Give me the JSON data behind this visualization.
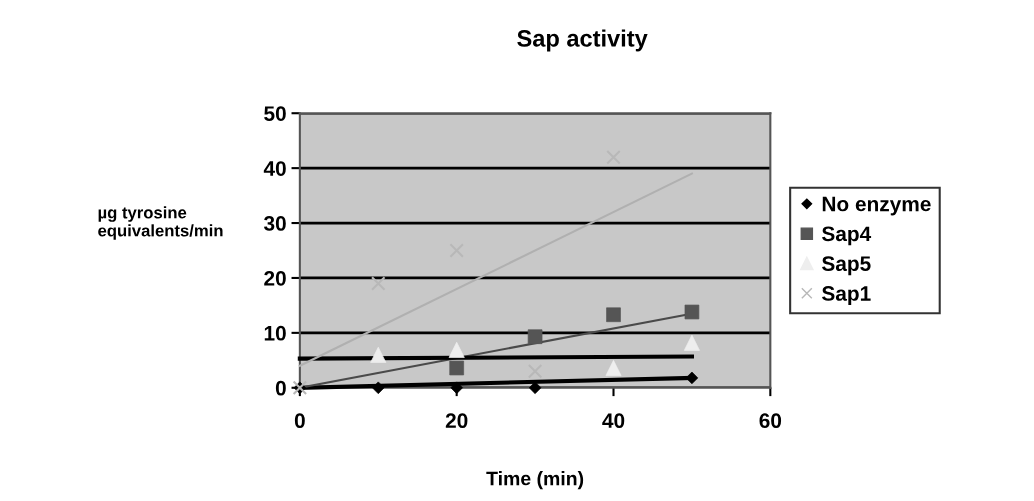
{
  "chart_data": {
    "type": "scatter",
    "title": "Sap activity",
    "xlabel": "Time (min)",
    "ylabel": "µg tyrosine\nequivalents/min",
    "x": [
      0,
      10,
      20,
      30,
      40,
      50
    ],
    "series": [
      {
        "name": "No enzyme",
        "color": "#000000",
        "marker": "diamond",
        "values": [
          0,
          0,
          0,
          0,
          null,
          1.8
        ]
      },
      {
        "name": "Sap4",
        "color": "#555555",
        "marker": "square",
        "values": [
          null,
          null,
          3.6,
          9.3,
          13.3,
          13.8
        ]
      },
      {
        "name": "Sap5",
        "color": "#eeeeee",
        "marker": "triangle",
        "values": [
          null,
          6,
          6.9,
          null,
          3.6,
          8.2
        ]
      },
      {
        "name": "Sap1",
        "color": "#b8b8b8",
        "marker": "cross",
        "values": [
          0,
          19,
          25,
          3,
          42,
          null
        ]
      },
      {
        "type": "line",
        "color": "#000000",
        "values": [
          0,
          null,
          null,
          null,
          null,
          1.8
        ]
      },
      {
        "type": "line",
        "color": "#4a4a4a",
        "values": [
          0,
          null,
          null,
          null,
          null,
          13.5
        ]
      },
      {
        "type": "line",
        "color": "#000000",
        "values": [
          5.3,
          null,
          null,
          null,
          null,
          5.7
        ]
      },
      {
        "type": "line",
        "color": "#b0b0b0",
        "values": [
          4,
          null,
          null,
          null,
          null,
          39
        ]
      }
    ],
    "xlim": [
      0,
      60
    ],
    "xticks": [
      0,
      20,
      40,
      60
    ],
    "ylim": [
      0,
      50
    ],
    "yticks": [
      0,
      10,
      20,
      30,
      40,
      50
    ],
    "grid": "y",
    "legend": "right"
  }
}
